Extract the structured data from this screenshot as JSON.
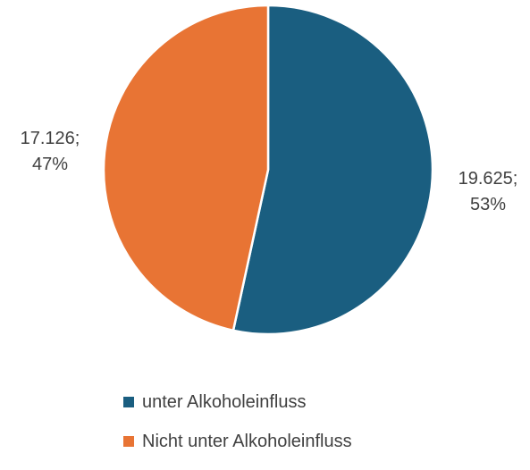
{
  "chart_data": {
    "type": "pie",
    "title": "",
    "slices": [
      {
        "name": "unter Alkoholeinfluss",
        "value": 19625,
        "value_label": "19.625;",
        "percent_label": "53%",
        "color": "#1a5e80"
      },
      {
        "name": "Nicht unter Alkoholeinfluss",
        "value": 17126,
        "value_label": "17.126;",
        "percent_label": "47%",
        "color": "#e87434"
      }
    ],
    "start_angle": "12 o'clock",
    "direction": "clockwise",
    "legend_position": "bottom",
    "data_labels": "outside"
  }
}
